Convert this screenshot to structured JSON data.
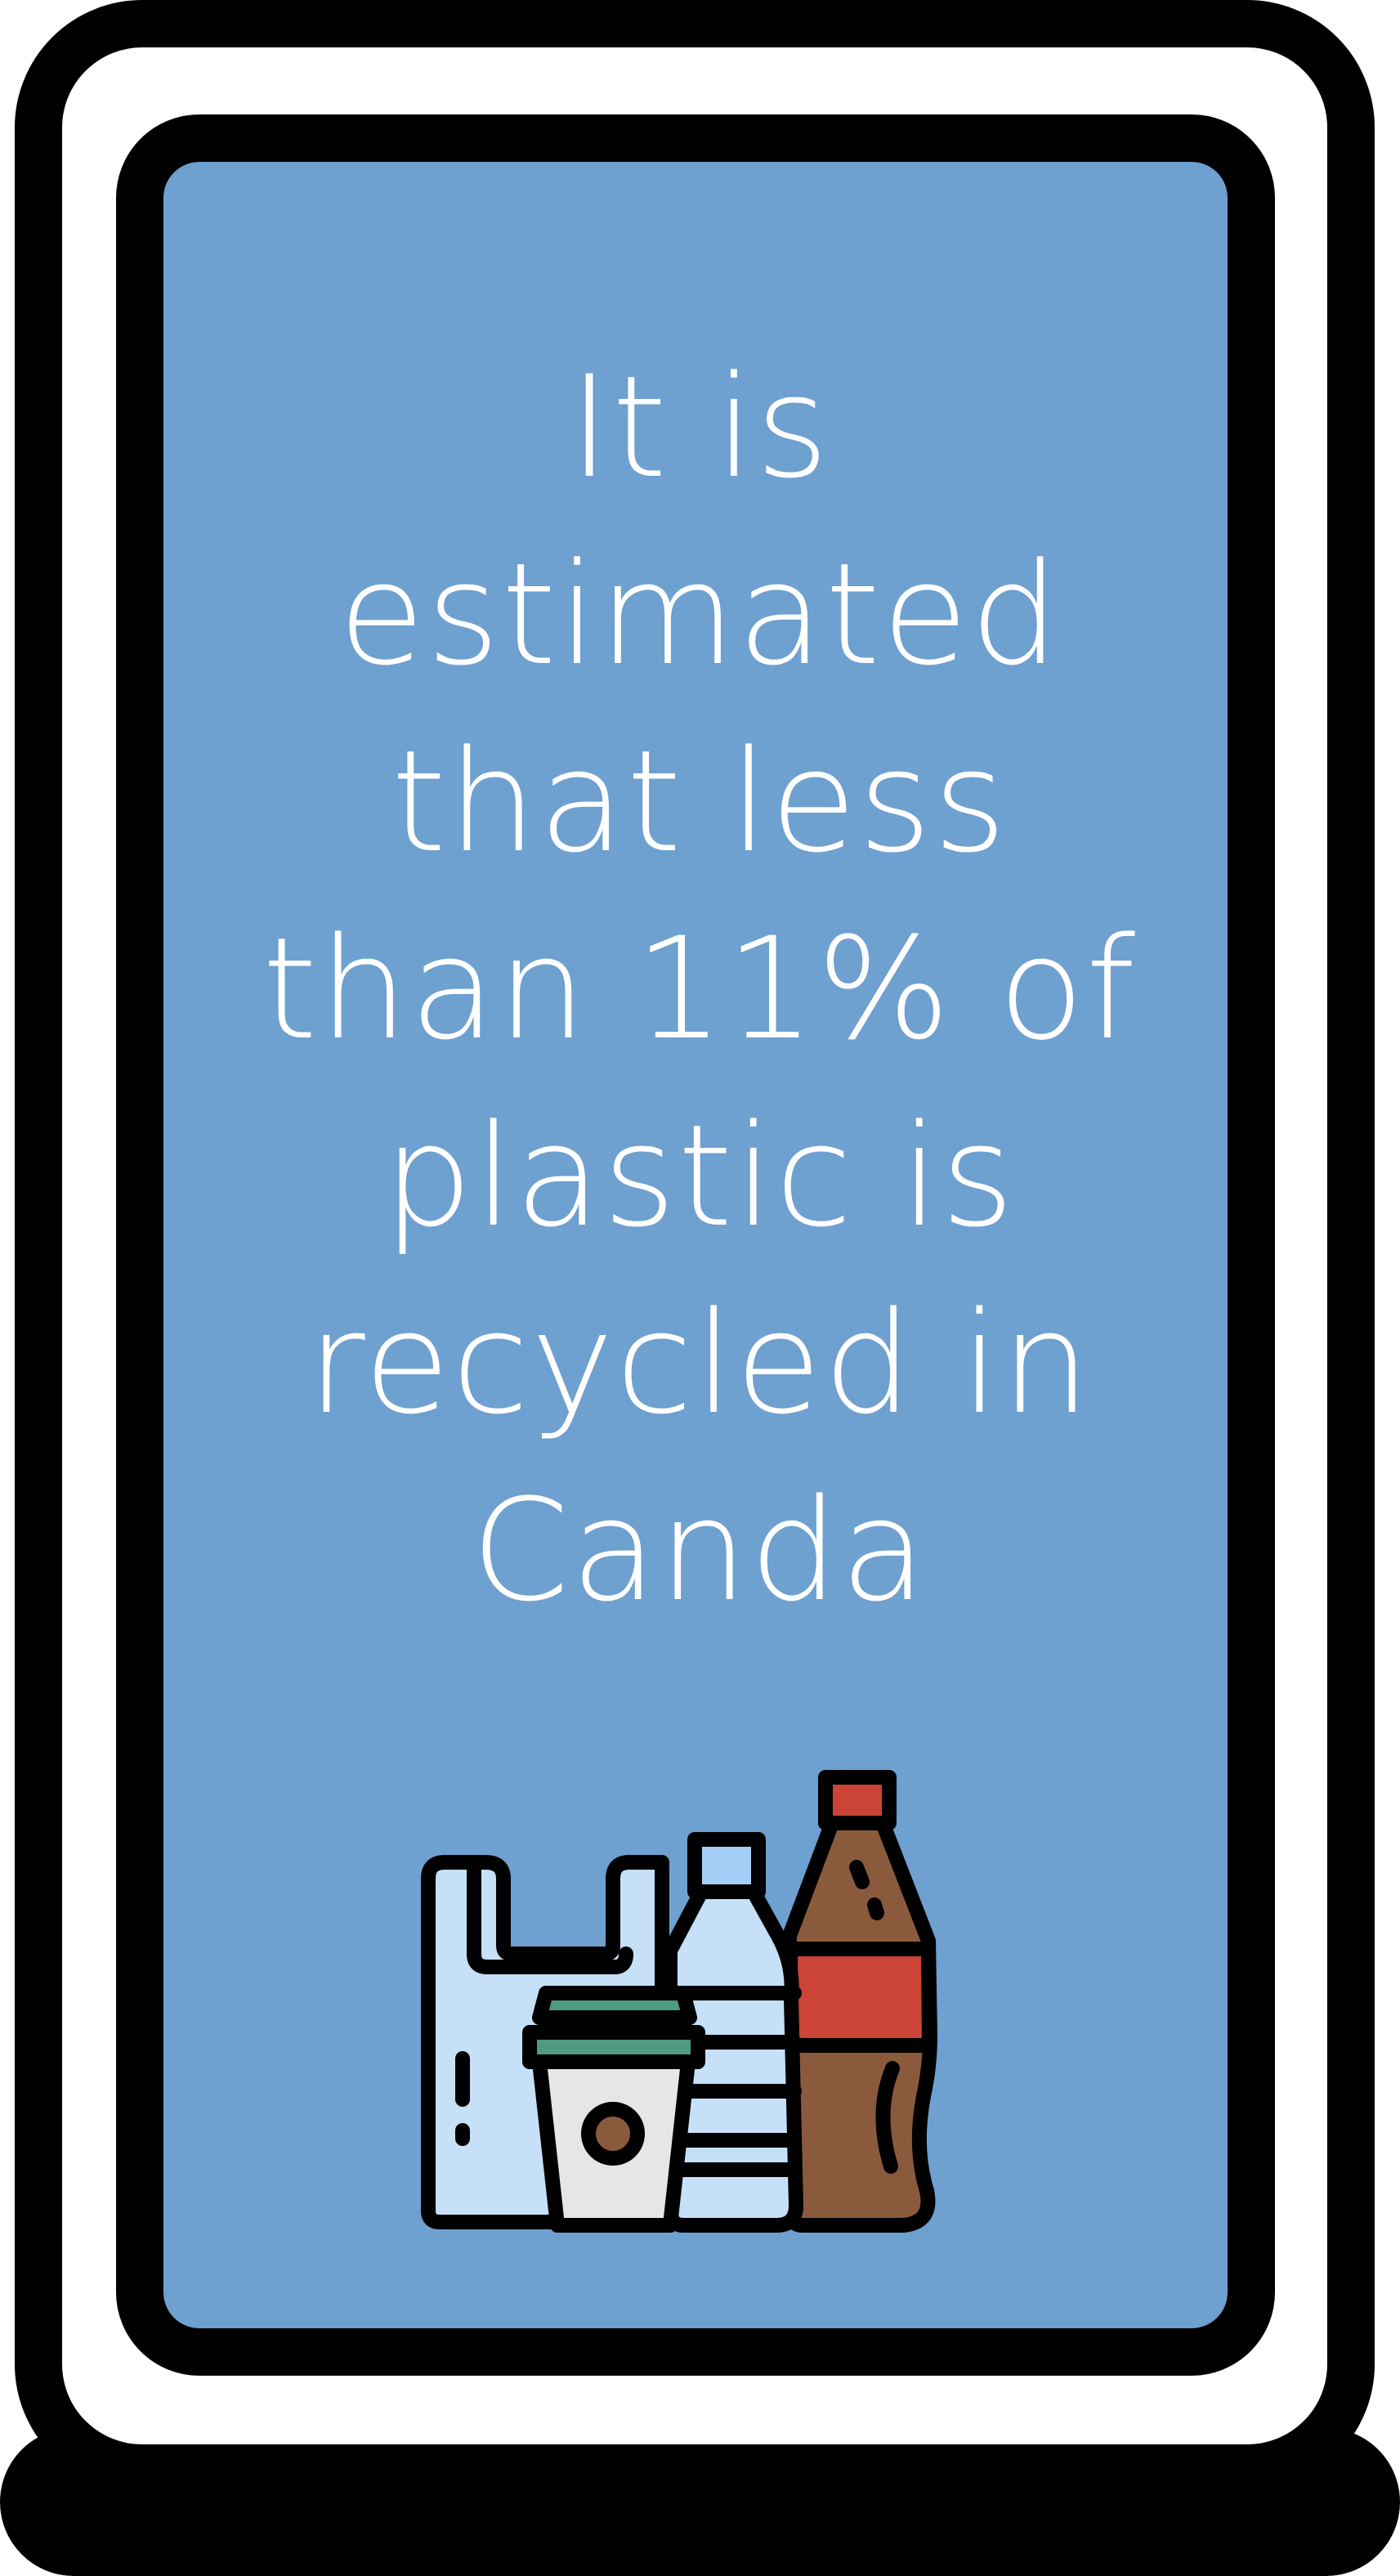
{
  "message": {
    "lines": [
      "It is",
      "estimated",
      "that less",
      "than 11% of",
      "plastic is",
      "recycled in",
      "Canda"
    ]
  },
  "colors": {
    "panel": "#6ea0d0",
    "frame": "#000000",
    "text": "#ffffff",
    "bag": "#c6e0f8",
    "cup": "#e6e6e6",
    "cup_lid": "#4e9a82",
    "bottle_cap_blue": "#a5cff6",
    "bottle_brown": "#8b5a3c",
    "bottle_label_red": "#cc4436"
  },
  "icons": {
    "illustration": "plastic-waste-icon"
  }
}
